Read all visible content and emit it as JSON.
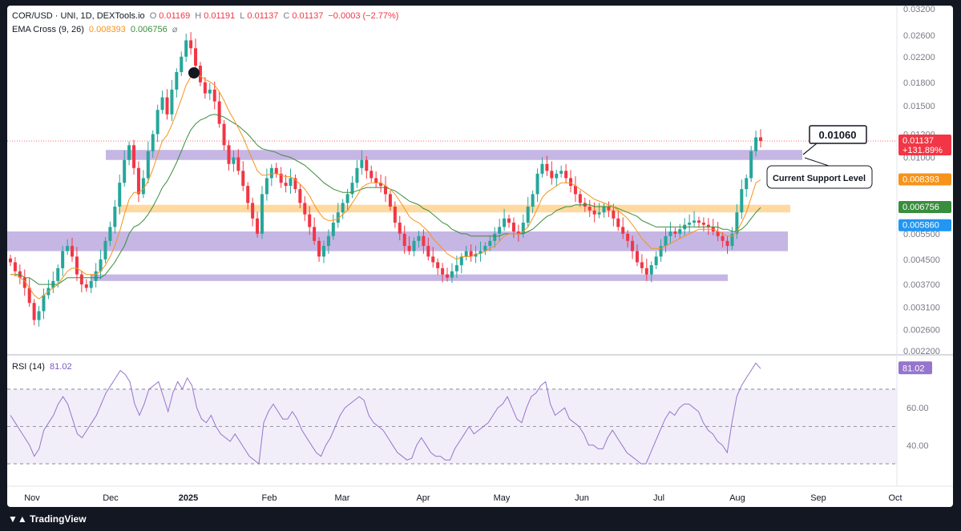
{
  "header": {
    "symbol": "COR/USD · UNI, 1D, DEXTools.io",
    "o_label": "O",
    "o": "0.01169",
    "h_label": "H",
    "h": "0.01191",
    "l_label": "L",
    "l": "0.01137",
    "c_label": "C",
    "c": "0.01137",
    "change": "−0.0003 (−2.77%)",
    "ema_label": "EMA Cross (9, 26)",
    "ema_fast": "0.008393",
    "ema_slow": "0.006756",
    "ema_icon": "eye-off-icon",
    "rsi_label": "RSI (14)",
    "rsi_value": "81.02"
  },
  "colors": {
    "up": "#26a69a",
    "down": "#f23645",
    "ema_fast": "#f7931a",
    "ema_slow": "#388e3c",
    "rsi": "#9575cd",
    "zone_purple": "#b39ddb",
    "zone_orange": "#ffcc80"
  },
  "chart_data": [
    {
      "type": "candlestick",
      "scale": "log",
      "y_ticks": [
        "0.03200",
        "0.02600",
        "0.02200",
        "0.01800",
        "0.01500",
        "0.01200",
        "0.01000",
        "0.008393",
        "0.006756",
        "0.005500",
        "0.004500",
        "0.003700",
        "0.003100",
        "0.002600",
        "0.002200"
      ],
      "y_range": [
        0.0022,
        0.032
      ],
      "x_ticks": [
        "Nov",
        "Dec",
        "2025",
        "Feb",
        "Mar",
        "Apr",
        "May",
        "Jun",
        "Jul",
        "Aug",
        "Sep",
        "Oct"
      ],
      "price_badges": [
        {
          "value": "0.01137",
          "sub": "+131.89%",
          "color": "#f23645"
        },
        {
          "value": "0.008393",
          "color": "#f7931a"
        },
        {
          "value": "0.006756",
          "color": "#388e3c"
        },
        {
          "value": "0.005860",
          "color": "#2196f3"
        }
      ],
      "annotations": {
        "price_callout": "0.01060",
        "support_label": "Current Support Level"
      },
      "support_zones": [
        {
          "low": 0.0098,
          "high": 0.0106,
          "color": "purple"
        },
        {
          "low": 0.0065,
          "high": 0.0069,
          "color": "orange"
        },
        {
          "low": 0.0048,
          "high": 0.0056,
          "color": "purple"
        },
        {
          "low": 0.0038,
          "high": 0.004,
          "color": "purple"
        }
      ],
      "closes": [
        0.0044,
        0.0041,
        0.0039,
        0.0036,
        0.0032,
        0.0028,
        0.003,
        0.0034,
        0.0036,
        0.0038,
        0.0042,
        0.0048,
        0.005,
        0.0046,
        0.004,
        0.0037,
        0.0036,
        0.0038,
        0.0041,
        0.0045,
        0.0052,
        0.0058,
        0.0068,
        0.0082,
        0.0098,
        0.011,
        0.0092,
        0.0075,
        0.0085,
        0.0105,
        0.012,
        0.0145,
        0.016,
        0.014,
        0.017,
        0.0195,
        0.022,
        0.025,
        0.0235,
        0.0205,
        0.018,
        0.0165,
        0.017,
        0.0155,
        0.013,
        0.011,
        0.0095,
        0.01,
        0.009,
        0.008,
        0.007,
        0.0062,
        0.0055,
        0.0075,
        0.0085,
        0.0092,
        0.0088,
        0.0082,
        0.008,
        0.0085,
        0.0078,
        0.007,
        0.0064,
        0.0058,
        0.0052,
        0.0046,
        0.005,
        0.0054,
        0.006,
        0.0065,
        0.007,
        0.0075,
        0.0082,
        0.0092,
        0.0098,
        0.009,
        0.0085,
        0.0082,
        0.008,
        0.0075,
        0.0068,
        0.006,
        0.0055,
        0.005,
        0.0048,
        0.0052,
        0.0054,
        0.005,
        0.0046,
        0.0044,
        0.0042,
        0.004,
        0.0039,
        0.0041,
        0.0043,
        0.0046,
        0.0048,
        0.0046,
        0.0047,
        0.0048,
        0.005,
        0.0052,
        0.0055,
        0.0058,
        0.0062,
        0.006,
        0.0056,
        0.0055,
        0.006,
        0.0068,
        0.0075,
        0.0088,
        0.0095,
        0.009,
        0.0085,
        0.0088,
        0.009,
        0.0085,
        0.008,
        0.0075,
        0.007,
        0.0068,
        0.0066,
        0.0064,
        0.0065,
        0.0068,
        0.0066,
        0.0062,
        0.0058,
        0.0055,
        0.0052,
        0.0048,
        0.0044,
        0.0042,
        0.004,
        0.0043,
        0.0046,
        0.005,
        0.0054,
        0.0056,
        0.0055,
        0.0057,
        0.0059,
        0.006,
        0.0061,
        0.006,
        0.0059,
        0.0058,
        0.0056,
        0.0054,
        0.0052,
        0.005,
        0.0055,
        0.0065,
        0.0078,
        0.0085,
        0.0105,
        0.0117,
        0.01137
      ],
      "ema_fast": [
        0.004,
        0.004,
        0.0039,
        0.0038,
        0.0036,
        0.0034,
        0.0033,
        0.0034,
        0.0035,
        0.0036,
        0.0037,
        0.0039,
        0.0041,
        0.0042,
        0.0042,
        0.0041,
        0.004,
        0.004,
        0.004,
        0.0041,
        0.0043,
        0.0046,
        0.005,
        0.0056,
        0.0064,
        0.0072,
        0.0076,
        0.0076,
        0.0078,
        0.0083,
        0.0091,
        0.0102,
        0.0114,
        0.0119,
        0.0129,
        0.0142,
        0.0158,
        0.0176,
        0.0188,
        0.0191,
        0.0189,
        0.0184,
        0.0181,
        0.0176,
        0.0167,
        0.0156,
        0.0144,
        0.0135,
        0.0126,
        0.0117,
        0.0107,
        0.0098,
        0.009,
        0.0087,
        0.0087,
        0.0088,
        0.0088,
        0.0087,
        0.0086,
        0.0086,
        0.0084,
        0.0081,
        0.0078,
        0.0074,
        0.0069,
        0.0065,
        0.0062,
        0.0061,
        0.0061,
        0.0062,
        0.0064,
        0.0066,
        0.007,
        0.0074,
        0.0079,
        0.0081,
        0.0082,
        0.0082,
        0.0082,
        0.008,
        0.0078,
        0.0075,
        0.0071,
        0.0067,
        0.0063,
        0.0061,
        0.006,
        0.0058,
        0.0056,
        0.0053,
        0.0051,
        0.0049,
        0.0047,
        0.0046,
        0.0045,
        0.0046,
        0.0046,
        0.0046,
        0.0047,
        0.0047,
        0.0048,
        0.0049,
        0.005,
        0.0052,
        0.0054,
        0.0055,
        0.0055,
        0.0055,
        0.0056,
        0.0058,
        0.0062,
        0.0067,
        0.0073,
        0.0076,
        0.0078,
        0.008,
        0.0082,
        0.0082,
        0.0082,
        0.008,
        0.0078,
        0.0076,
        0.0074,
        0.0072,
        0.0071,
        0.007,
        0.0069,
        0.0068,
        0.0066,
        0.0064,
        0.0062,
        0.0059,
        0.0056,
        0.0053,
        0.0051,
        0.0049,
        0.0049,
        0.0049,
        0.005,
        0.0051,
        0.0052,
        0.0053,
        0.0054,
        0.0055,
        0.0056,
        0.0057,
        0.0057,
        0.0057,
        0.0057,
        0.0056,
        0.0055,
        0.0054,
        0.0054,
        0.0056,
        0.006,
        0.0065,
        0.0073,
        0.0082,
        0.008393
      ],
      "ema_slow": [
        0.004,
        0.004,
        0.004,
        0.0039,
        0.0039,
        0.0038,
        0.0037,
        0.0037,
        0.0037,
        0.0037,
        0.0037,
        0.0038,
        0.0039,
        0.0039,
        0.0039,
        0.0039,
        0.0039,
        0.0039,
        0.0039,
        0.0039,
        0.004,
        0.0042,
        0.0044,
        0.0047,
        0.005,
        0.0055,
        0.0058,
        0.0059,
        0.0061,
        0.0064,
        0.0068,
        0.0073,
        0.0079,
        0.0083,
        0.0089,
        0.0096,
        0.0105,
        0.0115,
        0.0124,
        0.013,
        0.0134,
        0.0136,
        0.0139,
        0.014,
        0.0139,
        0.0137,
        0.0134,
        0.0131,
        0.0128,
        0.0124,
        0.012,
        0.0115,
        0.011,
        0.0107,
        0.0106,
        0.0105,
        0.0104,
        0.0102,
        0.0101,
        0.01,
        0.0098,
        0.0096,
        0.0094,
        0.0091,
        0.0088,
        0.0085,
        0.0082,
        0.008,
        0.0078,
        0.0077,
        0.0076,
        0.0076,
        0.0076,
        0.0077,
        0.0078,
        0.0079,
        0.0079,
        0.0079,
        0.0079,
        0.0079,
        0.0078,
        0.0077,
        0.0075,
        0.0073,
        0.0071,
        0.007,
        0.0069,
        0.0067,
        0.0066,
        0.0064,
        0.0062,
        0.006,
        0.0059,
        0.0057,
        0.0056,
        0.0055,
        0.0055,
        0.0054,
        0.0054,
        0.0054,
        0.0054,
        0.0054,
        0.0054,
        0.0054,
        0.0055,
        0.0055,
        0.0055,
        0.0055,
        0.0055,
        0.0056,
        0.0057,
        0.0059,
        0.0061,
        0.0063,
        0.0064,
        0.0066,
        0.0067,
        0.0068,
        0.0068,
        0.0069,
        0.0069,
        0.0069,
        0.0069,
        0.0068,
        0.0068,
        0.0068,
        0.0068,
        0.0068,
        0.0067,
        0.0066,
        0.0065,
        0.0064,
        0.0063,
        0.0061,
        0.006,
        0.0059,
        0.0058,
        0.0058,
        0.0058,
        0.0058,
        0.0058,
        0.0058,
        0.0058,
        0.0058,
        0.0058,
        0.0058,
        0.0058,
        0.0058,
        0.0058,
        0.0058,
        0.0057,
        0.0057,
        0.0056,
        0.0056,
        0.0057,
        0.0059,
        0.0062,
        0.0065,
        0.006756
      ]
    },
    {
      "type": "line",
      "name": "RSI (14)",
      "y_ticks": [
        "60.00",
        "40.00"
      ],
      "y_range": [
        18,
        88
      ],
      "bands": [
        70,
        50,
        30
      ],
      "values": [
        56,
        52,
        48,
        44,
        40,
        34,
        38,
        48,
        52,
        56,
        62,
        66,
        62,
        54,
        46,
        44,
        48,
        52,
        56,
        62,
        68,
        72,
        76,
        80,
        78,
        74,
        62,
        56,
        62,
        70,
        72,
        74,
        66,
        58,
        68,
        74,
        70,
        76,
        72,
        60,
        54,
        52,
        56,
        50,
        46,
        44,
        42,
        46,
        42,
        38,
        34,
        32,
        30,
        52,
        58,
        62,
        58,
        54,
        54,
        58,
        54,
        48,
        44,
        40,
        36,
        34,
        40,
        44,
        50,
        56,
        60,
        62,
        64,
        66,
        64,
        56,
        52,
        50,
        48,
        44,
        40,
        36,
        34,
        32,
        33,
        40,
        44,
        40,
        36,
        34,
        34,
        32,
        32,
        38,
        42,
        46,
        50,
        46,
        48,
        50,
        52,
        56,
        60,
        62,
        66,
        60,
        54,
        52,
        60,
        66,
        68,
        72,
        74,
        62,
        56,
        58,
        60,
        54,
        52,
        50,
        46,
        40,
        40,
        38,
        38,
        44,
        48,
        44,
        40,
        36,
        34,
        32,
        30,
        30,
        36,
        42,
        48,
        54,
        58,
        56,
        60,
        62,
        62,
        60,
        58,
        52,
        48,
        46,
        42,
        40,
        36,
        52,
        66,
        72,
        76,
        80,
        84,
        81.02
      ]
    }
  ]
}
